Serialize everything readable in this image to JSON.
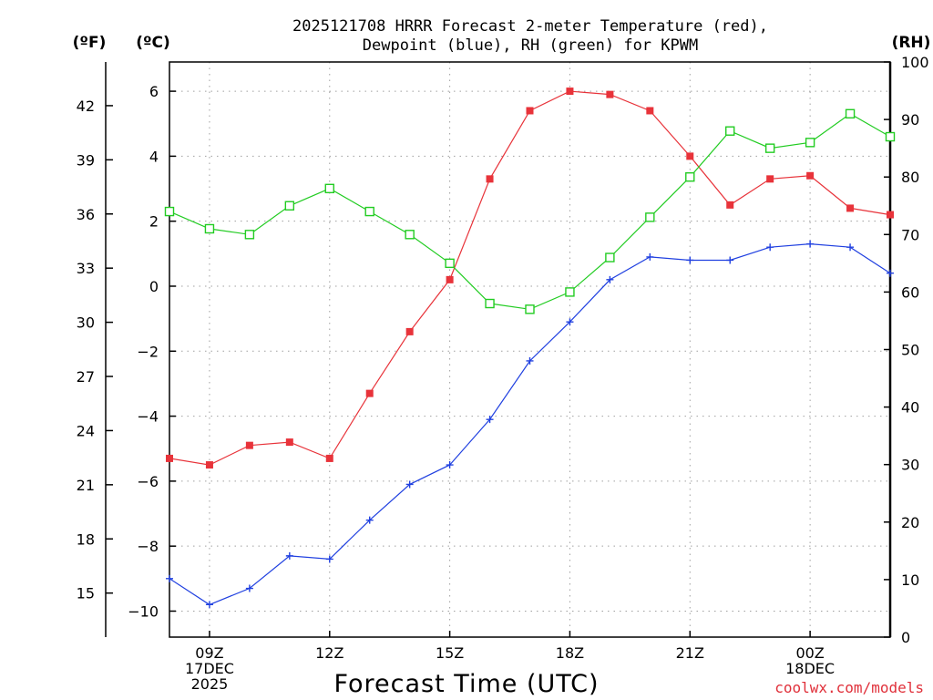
{
  "chart_data": {
    "type": "line",
    "title_lines": [
      "2025121708 HRRR Forecast 2-meter Temperature (red),",
      "Dewpoint (blue), RH (green) for KPWM"
    ],
    "unit_labels": {
      "fahrenheit": "(ºF)",
      "celsius": "(ºC)",
      "rh": "(RH)"
    },
    "xlabel": "Forecast Time (UTC)",
    "credit": "coolwx.com/models",
    "x_hours": [
      8,
      9,
      10,
      11,
      12,
      13,
      14,
      15,
      16,
      17,
      18,
      19,
      20,
      21,
      22,
      23,
      24,
      25,
      26
    ],
    "x_range": [
      8,
      26
    ],
    "x_ticks": [
      {
        "hour": 9,
        "lines": [
          "09Z",
          "17DEC",
          "2025"
        ]
      },
      {
        "hour": 12,
        "lines": [
          "12Z"
        ]
      },
      {
        "hour": 15,
        "lines": [
          "15Z"
        ]
      },
      {
        "hour": 18,
        "lines": [
          "18Z"
        ]
      },
      {
        "hour": 21,
        "lines": [
          "21Z"
        ]
      },
      {
        "hour": 24,
        "lines": [
          "00Z",
          "18DEC"
        ]
      }
    ],
    "x_gridlines": [
      9,
      12,
      15,
      18,
      21,
      24
    ],
    "celsius_axis": {
      "range": [
        -10.8,
        6.9
      ],
      "ticks": [
        6,
        4,
        2,
        0,
        -2,
        -4,
        -6,
        -8,
        -10
      ]
    },
    "fahrenheit_axis": {
      "ticks": [
        42,
        39,
        36,
        33,
        30,
        27,
        24,
        21,
        18,
        15
      ]
    },
    "rh_axis": {
      "range": [
        0,
        100
      ],
      "ticks": [
        0,
        10,
        20,
        30,
        40,
        50,
        60,
        70,
        80,
        90,
        100
      ]
    },
    "y_gridlines_celsius": [
      6,
      4,
      2,
      0,
      -2,
      -4,
      -6,
      -8,
      -10
    ],
    "series": [
      {
        "name": "2-meter Temperature",
        "axis": "celsius",
        "color": "#e8333a",
        "marker": "filled-square",
        "values": [
          -5.3,
          -5.5,
          -4.9,
          -4.8,
          -5.3,
          -3.3,
          -1.4,
          0.2,
          3.3,
          5.4,
          6.0,
          5.9,
          5.4,
          4.0,
          2.5,
          3.3,
          3.4,
          2.4,
          2.2
        ]
      },
      {
        "name": "Dewpoint",
        "axis": "celsius",
        "color": "#2040e0",
        "marker": "plus",
        "values": [
          -9.0,
          -9.8,
          -9.3,
          -8.3,
          -8.4,
          -7.2,
          -6.1,
          -5.5,
          -4.1,
          -2.3,
          -1.1,
          0.2,
          0.9,
          0.8,
          0.8,
          1.2,
          1.3,
          1.2,
          0.4
        ]
      },
      {
        "name": "RH",
        "axis": "rh",
        "color": "#22cc22",
        "marker": "open-square",
        "values": [
          74,
          71,
          70,
          75,
          78,
          74,
          70,
          65,
          58,
          57,
          60,
          66,
          73,
          80,
          88,
          85,
          86,
          91,
          87
        ]
      }
    ]
  }
}
